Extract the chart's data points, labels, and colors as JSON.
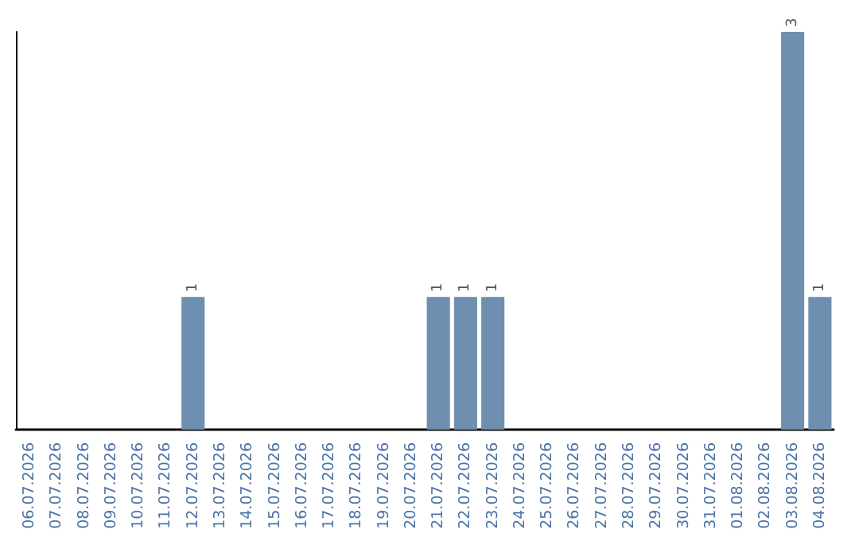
{
  "chart_data": {
    "type": "bar",
    "categories": [
      "06.07.2026",
      "07.07.2026",
      "08.07.2026",
      "09.07.2026",
      "10.07.2026",
      "11.07.2026",
      "12.07.2026",
      "13.07.2026",
      "14.07.2026",
      "15.07.2026",
      "16.07.2026",
      "17.07.2026",
      "18.07.2026",
      "19.07.2026",
      "20.07.2026",
      "21.07.2026",
      "22.07.2026",
      "23.07.2026",
      "24.07.2026",
      "25.07.2026",
      "26.07.2026",
      "27.07.2026",
      "28.07.2026",
      "29.07.2026",
      "30.07.2026",
      "31.07.2026",
      "01.08.2026",
      "02.08.2026",
      "03.08.2026",
      "04.08.2026"
    ],
    "values": [
      0,
      0,
      0,
      0,
      0,
      0,
      1,
      0,
      0,
      0,
      0,
      0,
      0,
      0,
      0,
      1,
      1,
      1,
      0,
      0,
      0,
      0,
      0,
      0,
      0,
      0,
      0,
      0,
      3,
      1
    ],
    "value_labels": [
      null,
      null,
      null,
      null,
      null,
      null,
      "1",
      null,
      null,
      null,
      null,
      null,
      null,
      null,
      null,
      "1",
      "1",
      "1",
      null,
      null,
      null,
      null,
      null,
      null,
      null,
      null,
      null,
      null,
      "3",
      "1"
    ],
    "color": "#6f8fb0",
    "grid": false
  }
}
